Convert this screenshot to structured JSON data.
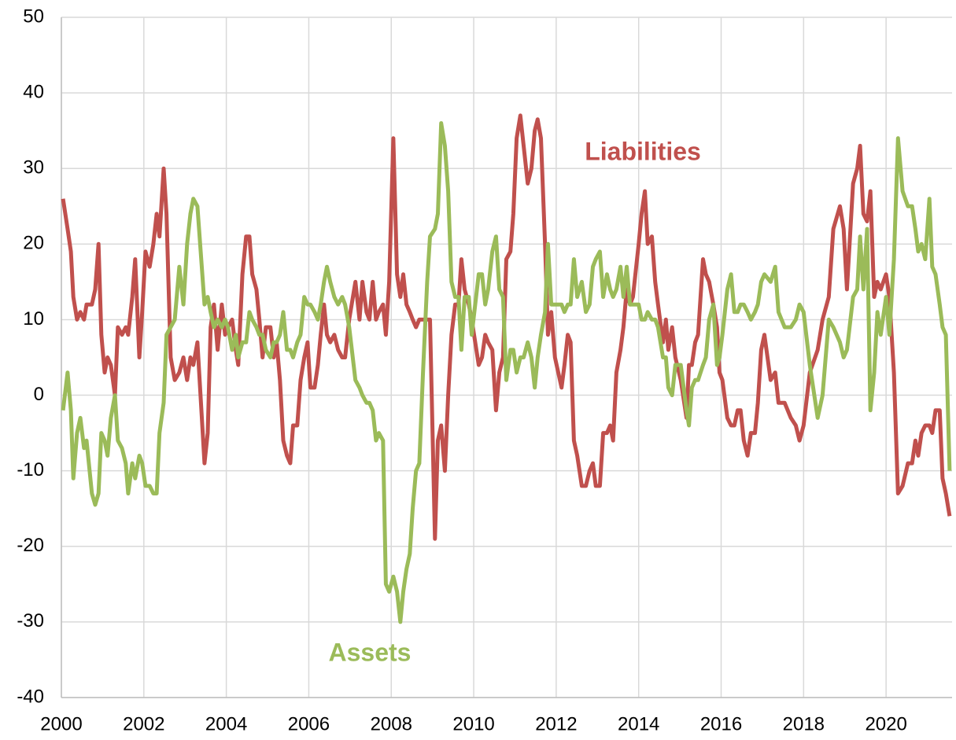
{
  "chart_data": {
    "type": "line",
    "x": [
      2000.04,
      2000.15,
      2000.23,
      2000.29,
      2000.38,
      2000.46,
      2000.55,
      2000.61,
      2000.74,
      2000.82,
      2000.9,
      2000.97,
      2001.05,
      2001.12,
      2001.2,
      2001.3,
      2001.37,
      2001.47,
      2001.56,
      2001.62,
      2001.72,
      2001.79,
      2001.89,
      2001.96,
      2002.04,
      2002.14,
      2002.23,
      2002.31,
      2002.38,
      2002.48,
      2002.55,
      2002.65,
      2002.75,
      2002.86,
      2002.96,
      2003.05,
      2003.13,
      2003.2,
      2003.3,
      2003.47,
      2003.55,
      2003.62,
      2003.7,
      2003.79,
      2003.89,
      2003.97,
      2004.04,
      2004.14,
      2004.23,
      2004.29,
      2004.39,
      2004.48,
      2004.56,
      2004.63,
      2004.73,
      2004.8,
      2004.88,
      2004.96,
      2005.07,
      2005.15,
      2005.22,
      2005.3,
      2005.38,
      2005.47,
      2005.55,
      2005.62,
      2005.72,
      2005.8,
      2005.89,
      2005.97,
      2006.04,
      2006.14,
      2006.22,
      2006.29,
      2006.37,
      2006.44,
      2006.52,
      2006.62,
      2006.71,
      2006.81,
      2006.88,
      2006.98,
      2007.13,
      2007.23,
      2007.3,
      2007.4,
      2007.47,
      2007.55,
      2007.63,
      2007.7,
      2007.8,
      2007.87,
      2007.95,
      2008.05,
      2008.14,
      2008.22,
      2008.29,
      2008.37,
      2008.45,
      2008.52,
      2008.6,
      2008.68,
      2008.77,
      2008.87,
      2008.94,
      2009.06,
      2009.13,
      2009.21,
      2009.3,
      2009.38,
      2009.46,
      2009.55,
      2009.63,
      2009.7,
      2009.78,
      2009.88,
      2009.95,
      2010.12,
      2010.2,
      2010.28,
      2010.35,
      2010.45,
      2010.54,
      2010.62,
      2010.71,
      2010.79,
      2010.89,
      2010.96,
      2011.04,
      2011.13,
      2011.21,
      2011.31,
      2011.4,
      2011.48,
      2011.55,
      2011.63,
      2011.73,
      2011.8,
      2011.88,
      2011.97,
      2012.13,
      2012.2,
      2012.28,
      2012.35,
      2012.43,
      2012.51,
      2012.62,
      2012.72,
      2012.81,
      2012.89,
      2012.96,
      2013.06,
      2013.14,
      2013.23,
      2013.31,
      2013.38,
      2013.46,
      2013.56,
      2013.63,
      2013.71,
      2013.79,
      2013.86,
      2014,
      2014.07,
      2014.15,
      2014.22,
      2014.32,
      2014.4,
      2014.47,
      2014.59,
      2014.66,
      2014.72,
      2014.81,
      2014.89,
      2015.02,
      2015.16,
      2015.22,
      2015.29,
      2015.37,
      2015.44,
      2015.56,
      2015.63,
      2015.71,
      2015.81,
      2015.9,
      2015.96,
      2016.03,
      2016.15,
      2016.24,
      2016.32,
      2016.4,
      2016.47,
      2016.55,
      2016.64,
      2016.72,
      2016.82,
      2016.89,
      2016.97,
      2017.05,
      2017.2,
      2017.31,
      2017.39,
      2017.54,
      2017.69,
      2017.81,
      2017.9,
      2018,
      2018.15,
      2018.34,
      2018.46,
      2018.61,
      2018.72,
      2018.88,
      2018.97,
      2019.05,
      2019.2,
      2019.3,
      2019.37,
      2019.45,
      2019.54,
      2019.62,
      2019.71,
      2019.79,
      2019.87,
      2020,
      2020.08,
      2020.19,
      2020.29,
      2020.4,
      2020.53,
      2020.63,
      2020.71,
      2020.78,
      2020.86,
      2020.95,
      2021.05,
      2021.12,
      2021.2,
      2021.3,
      2021.37,
      2021.45,
      2021.54
    ],
    "series": [
      {
        "name": "Liabilities",
        "color": "#c0504d",
        "values": [
          26,
          22,
          19,
          13,
          10,
          11,
          10,
          12,
          12,
          14,
          20,
          8,
          3,
          5,
          4,
          0,
          9,
          8,
          9,
          8,
          13,
          18,
          5,
          11,
          19,
          17,
          20,
          24,
          21,
          30,
          24,
          5,
          2,
          3,
          5,
          2,
          5,
          4,
          7,
          -9,
          -5,
          9,
          12,
          6,
          12,
          8,
          9,
          10,
          6,
          4,
          16,
          21,
          21,
          16,
          14,
          10,
          5,
          9,
          9,
          5,
          7,
          2,
          -6,
          -8,
          -9,
          -4,
          -4,
          2,
          5,
          7,
          1,
          1,
          4,
          8,
          12,
          8,
          7,
          8,
          6,
          5,
          5,
          10,
          15,
          10,
          15,
          11,
          10,
          15,
          10,
          11,
          12,
          8,
          15,
          34,
          16,
          13,
          16,
          12,
          11,
          10,
          9,
          10,
          10,
          10,
          10,
          -19,
          -6,
          -4,
          -10,
          0,
          8,
          12,
          12,
          18,
          14,
          12,
          10,
          4,
          5,
          8,
          7,
          6,
          -2,
          3,
          5,
          18,
          19,
          24,
          34,
          37,
          33,
          28,
          30,
          35,
          36.5,
          34,
          20,
          8,
          11,
          5,
          1,
          4,
          8,
          7,
          -6,
          -8,
          -12,
          -12,
          -10,
          -9,
          -12,
          -12,
          -5,
          -5,
          -4,
          -6,
          3,
          6,
          9,
          14,
          12,
          13,
          20,
          24,
          27,
          20,
          21,
          15,
          12,
          7,
          10,
          6,
          9,
          5,
          2,
          -3,
          4,
          4,
          7,
          8,
          18,
          16,
          15,
          12,
          9,
          3,
          2,
          -3,
          -4,
          -4,
          -2,
          -2,
          -6,
          -8,
          -5,
          -5,
          -1,
          6,
          8,
          2,
          3,
          -1,
          -1,
          -3,
          -4,
          -6,
          -4,
          3,
          6,
          10,
          13,
          22,
          25,
          22,
          14,
          28,
          30,
          33,
          24,
          23,
          27,
          13,
          15,
          14,
          16,
          13,
          3,
          -13,
          -12,
          -9,
          -9,
          -6,
          -8,
          -5,
          -4,
          -4,
          -5,
          -2,
          -2,
          -11,
          -13,
          -16
        ]
      },
      {
        "name": "Assets",
        "color": "#9bbb59",
        "values": [
          -2,
          3,
          -2,
          -11,
          -5,
          -3,
          -7,
          -6,
          -13,
          -14.5,
          -13,
          -5,
          -6,
          -8,
          -3,
          0,
          -6,
          -7,
          -9,
          -13,
          -9,
          -11,
          -8,
          -9,
          -12,
          -12,
          -13,
          -13,
          -5,
          -1,
          8,
          9,
          10,
          17,
          12,
          20,
          24,
          26,
          25,
          12,
          13,
          11,
          9,
          10,
          9,
          10,
          9,
          6,
          8,
          5,
          7,
          7,
          11,
          10,
          9,
          8,
          8,
          6,
          5,
          7,
          7,
          8,
          11,
          6,
          6,
          5,
          7,
          8,
          13,
          12,
          12,
          11,
          10,
          12,
          15,
          17,
          15,
          13,
          12,
          13,
          12,
          9,
          2,
          1,
          0,
          -1,
          -1,
          -2,
          -6,
          -5,
          -6,
          -25,
          -26,
          -24,
          -26,
          -30,
          -26,
          -23,
          -21,
          -15,
          -10,
          -9,
          3,
          15,
          21,
          22,
          24,
          36,
          33,
          27,
          15,
          13,
          13,
          6,
          13,
          13,
          8,
          16,
          16,
          12,
          14,
          19,
          21,
          14,
          13,
          2,
          6,
          6,
          3,
          5,
          5,
          7,
          5,
          1,
          5,
          8,
          11,
          20,
          12,
          12,
          12,
          11,
          12,
          12,
          18,
          13,
          15,
          11,
          12,
          17,
          18,
          19,
          13,
          16,
          14,
          13,
          14,
          17,
          13,
          17,
          12,
          12,
          12,
          10,
          10,
          11,
          10,
          10,
          9,
          5,
          5,
          1,
          0,
          4,
          4,
          -2,
          -4,
          1,
          2,
          2,
          4,
          5,
          10,
          12,
          4,
          5,
          8,
          14,
          16,
          11,
          11,
          12,
          12,
          11,
          10,
          11,
          12,
          15,
          16,
          15,
          17,
          11,
          9,
          9,
          10,
          12,
          11,
          4,
          -3,
          0,
          10,
          9,
          7,
          5,
          6,
          13,
          14,
          21,
          14,
          22,
          -2,
          3,
          11,
          8,
          13,
          8,
          18,
          34,
          27,
          25,
          25,
          22,
          19,
          20,
          18,
          26,
          17,
          16,
          12,
          9,
          8,
          -10
        ]
      }
    ],
    "xlim": [
      2000,
      2021.6
    ],
    "xticks": [
      2000,
      2002,
      2004,
      2006,
      2008,
      2010,
      2012,
      2014,
      2016,
      2018,
      2020
    ],
    "ylim": [
      -40,
      50
    ],
    "yticks": [
      -40,
      -30,
      -20,
      -10,
      0,
      10,
      20,
      30,
      40,
      50
    ],
    "grid": true
  }
}
